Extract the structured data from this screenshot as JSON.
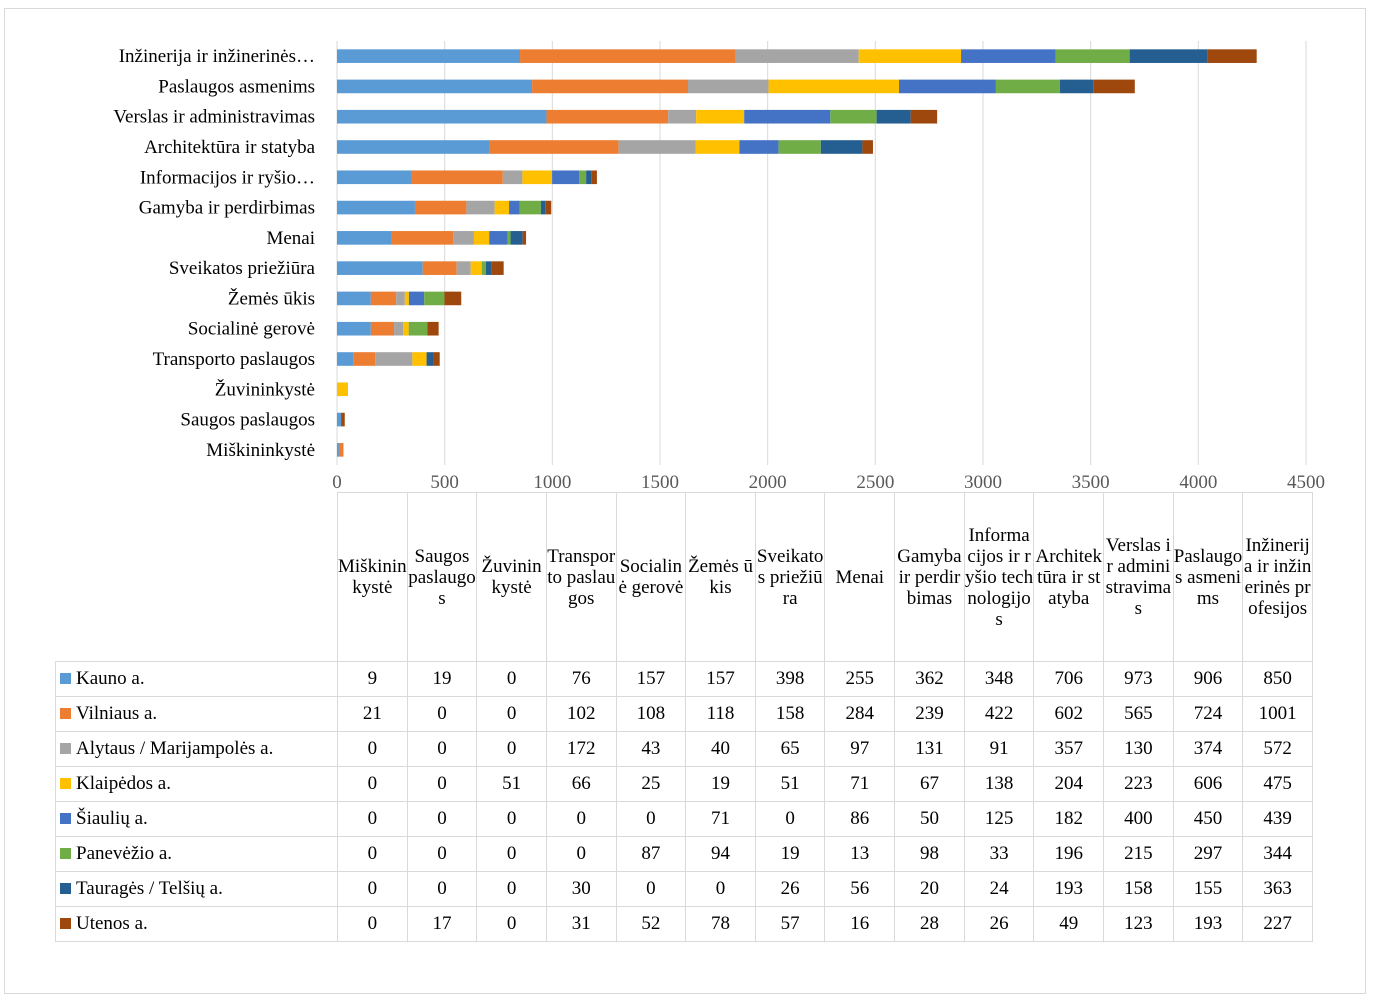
{
  "chart_data": {
    "type": "bar",
    "orientation": "horizontal",
    "stacked": true,
    "categories": [
      "Miškininkystė",
      "Saugos paslaugos",
      "Žuvininkystė",
      "Transporto paslaugos",
      "Socialinė gerovė",
      "Žemės ūkis",
      "Sveikatos priežiūra",
      "Menai",
      "Gamyba ir perdirbimas",
      "Informacijos ir ryšio technologijos",
      "Architektūra ir statyba",
      "Verslas ir administravimas",
      "Paslaugos asmenims",
      "Inžinerija ir inžinerinės profesijos"
    ],
    "axis_labels": [
      "Miškininkystė",
      "Saugos paslaugos",
      "Žuvininkystė",
      "Transporto paslaugos",
      "Socialinė gerovė",
      "Žemės ūkis",
      "Sveikatos priežiūra",
      "Menai",
      "Gamyba ir perdirbimas",
      "Informacijos ir ryšio…",
      "Architektūra ir statyba",
      "Verslas ir administravimas",
      "Paslaugos asmenims",
      "Inžinerija ir inžinerinės…"
    ],
    "table_headers": [
      "Miškininkystė",
      "Saugos paslaugos",
      "Žuvininkystė",
      "Transporto paslaugos",
      "Socialinė gerovė",
      "Žemės ūkis",
      "Sveikatos priežiūra",
      "Menai",
      "Gamyba ir perdirbimas",
      "Informacijos ir ryšio technologijos",
      "Architektūra ir statyba",
      "Verslas ir administravimas",
      "Paslaugos asmenims",
      "Inžinerija ir inžinerinės profesijos"
    ],
    "series": [
      {
        "name": "Kauno a.",
        "color": "#5b9bd5",
        "values": [
          9,
          19,
          0,
          76,
          157,
          157,
          398,
          255,
          362,
          348,
          706,
          973,
          906,
          850
        ]
      },
      {
        "name": "Vilniaus a.",
        "color": "#ed7d31",
        "values": [
          21,
          0,
          0,
          102,
          108,
          118,
          158,
          284,
          239,
          422,
          602,
          565,
          724,
          1001
        ]
      },
      {
        "name": "Alytaus / Marijampolės a.",
        "color": "#a5a5a5",
        "values": [
          0,
          0,
          0,
          172,
          43,
          40,
          65,
          97,
          131,
          91,
          357,
          130,
          374,
          572
        ]
      },
      {
        "name": "Klaipėdos a.",
        "color": "#ffc000",
        "values": [
          0,
          0,
          51,
          66,
          25,
          19,
          51,
          71,
          67,
          138,
          204,
          223,
          606,
          475
        ]
      },
      {
        "name": "Šiaulių a.",
        "color": "#4472c4",
        "values": [
          0,
          0,
          0,
          0,
          0,
          71,
          0,
          86,
          50,
          125,
          182,
          400,
          450,
          439
        ]
      },
      {
        "name": "Panevėžio a.",
        "color": "#70ad47",
        "values": [
          0,
          0,
          0,
          0,
          87,
          94,
          19,
          13,
          98,
          33,
          196,
          215,
          297,
          344
        ]
      },
      {
        "name": "Tauragės / Telšių a.",
        "color": "#255e91",
        "values": [
          0,
          0,
          0,
          30,
          0,
          0,
          26,
          56,
          20,
          24,
          193,
          158,
          155,
          363
        ]
      },
      {
        "name": "Utenos a.",
        "color": "#9e480e",
        "values": [
          0,
          17,
          0,
          31,
          52,
          78,
          57,
          16,
          28,
          26,
          49,
          123,
          193,
          227
        ]
      }
    ],
    "x_ticks": [
      "0",
      "500",
      "1000",
      "1500",
      "2000",
      "2500",
      "3000",
      "3500",
      "4000",
      "4500"
    ],
    "xlim": [
      0,
      4500
    ],
    "grid": "vertical major gridlines",
    "legend": "data table below chart"
  }
}
